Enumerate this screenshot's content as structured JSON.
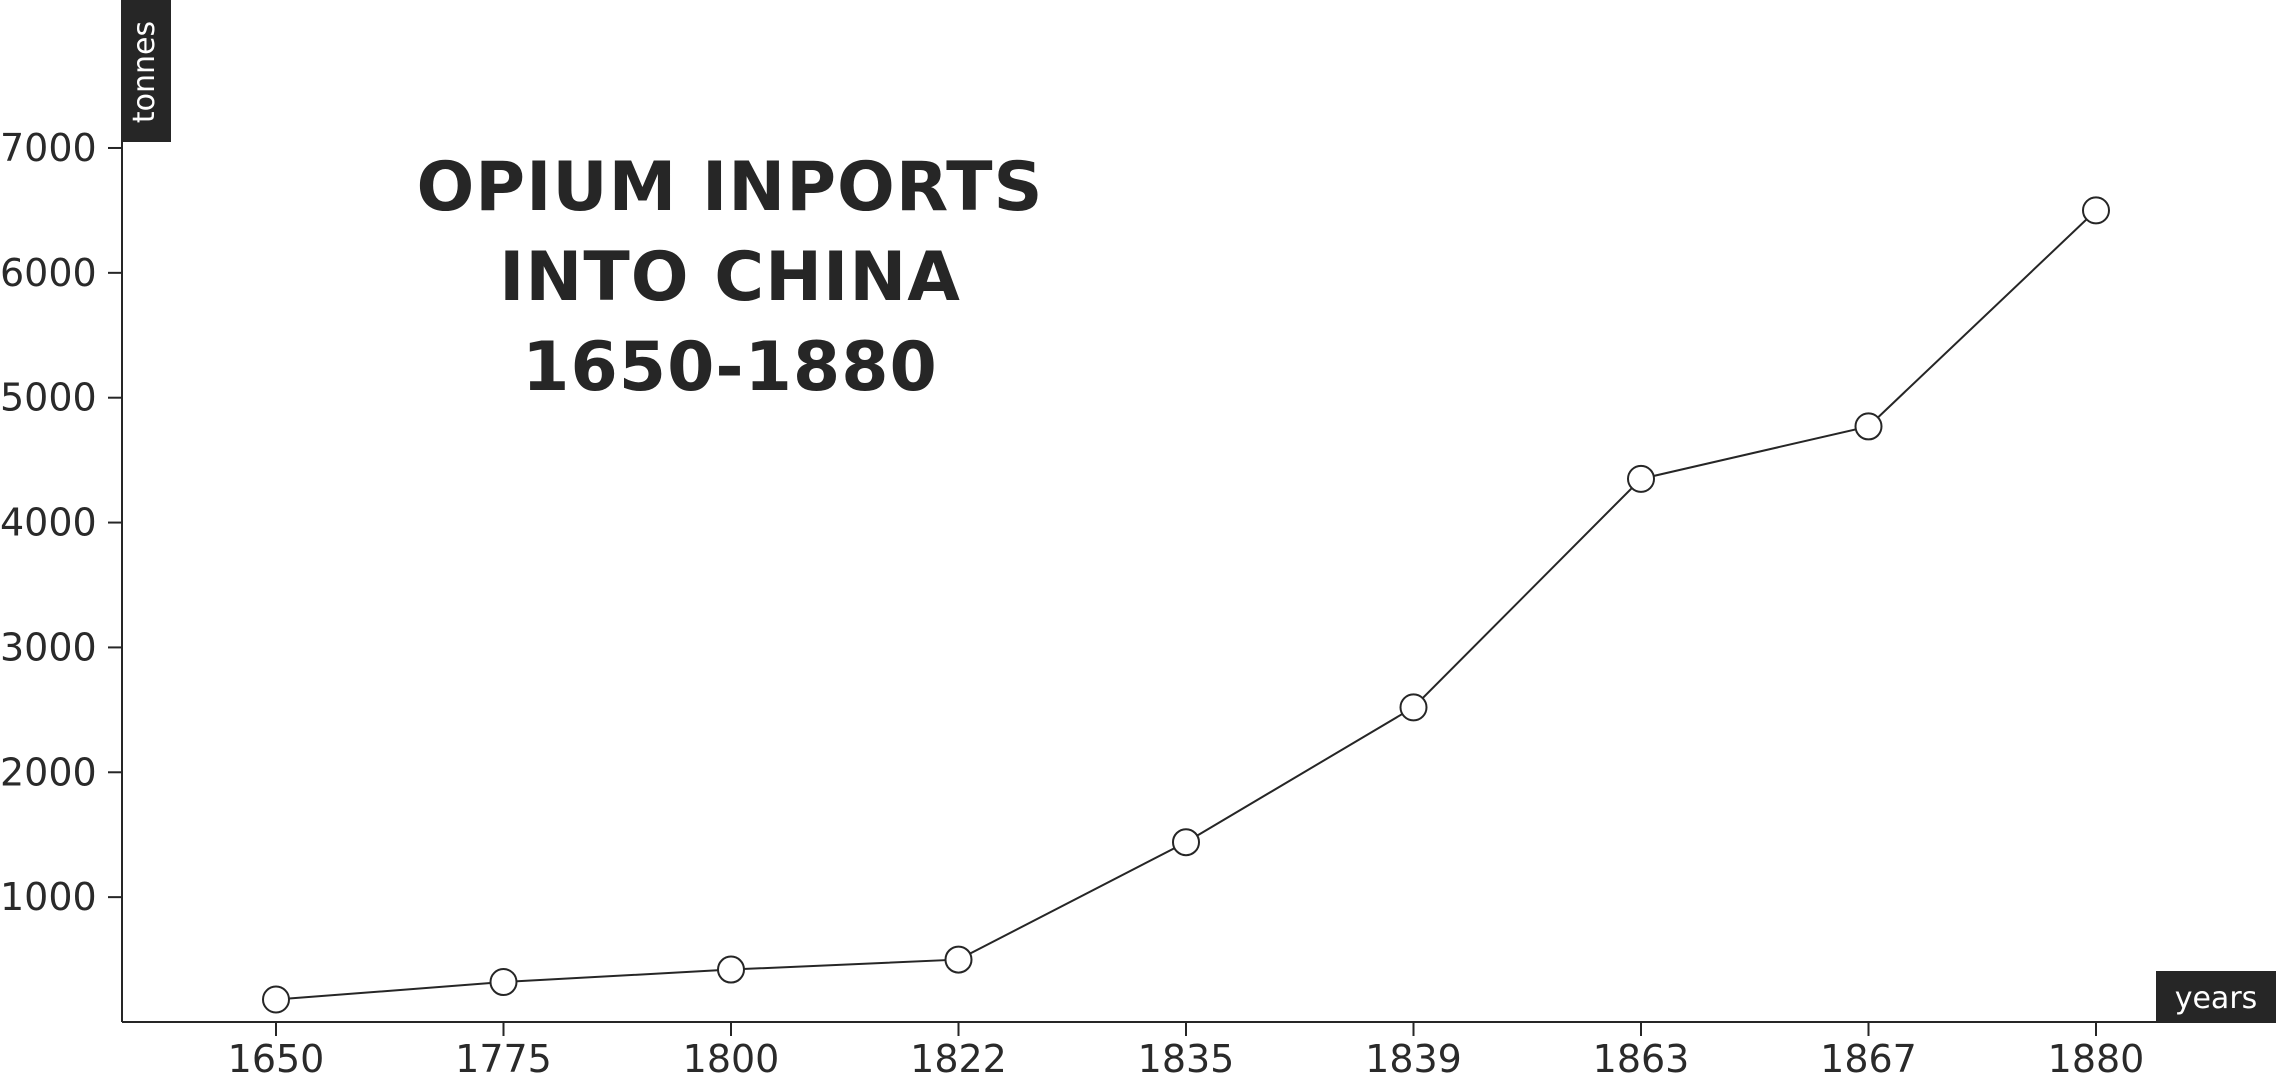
{
  "chart_data": {
    "type": "line",
    "title": [
      "OPIUM INPORTS",
      "INTO CHINA",
      "1650-1880"
    ],
    "xlabel": "years",
    "ylabel": "tonnes",
    "categories": [
      "1650",
      "1775",
      "1800",
      "1822",
      "1835",
      "1839",
      "1863",
      "1867",
      "1880"
    ],
    "values": [
      180,
      320,
      420,
      500,
      1440,
      2520,
      4350,
      4770,
      6500
    ],
    "y_ticks": [
      1000,
      2000,
      3000,
      4000,
      5000,
      6000,
      7000
    ],
    "ylim": [
      0,
      7000
    ],
    "grid": false,
    "legend": "none",
    "colors": {
      "line": "#262626",
      "marker_fill": "#ffffff",
      "axis": "#262626",
      "label_box": "#262626"
    }
  }
}
